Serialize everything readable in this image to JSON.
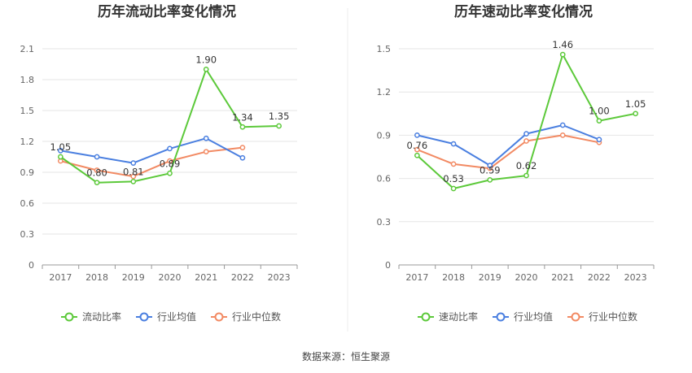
{
  "source_text": "数据来源：恒生聚源",
  "colors": {
    "main": "#5cc93a",
    "avg": "#4a7fe0",
    "median": "#f28a63",
    "grid": "#e6e6e6",
    "axis": "#999999"
  },
  "chart_data": [
    {
      "type": "line",
      "title": "历年流动比率变化情况",
      "xlabel": "",
      "ylabel": "",
      "categories": [
        "2017",
        "2018",
        "2019",
        "2020",
        "2021",
        "2022",
        "2023"
      ],
      "ylim": [
        0,
        2.1
      ],
      "yticks": [
        "0",
        "0.3",
        "0.6",
        "0.9",
        "1.2",
        "1.5",
        "1.8",
        "2.1"
      ],
      "grid": true,
      "legend": "bottom",
      "series": [
        {
          "name": "流动比率",
          "values": [
            1.05,
            0.8,
            0.81,
            0.89,
            1.9,
            1.34,
            1.35
          ],
          "labels": [
            "1.05",
            "0.80",
            "0.81",
            "0.89",
            "1.90",
            "1.34",
            "1.35"
          ]
        },
        {
          "name": "行业均值",
          "values": [
            1.11,
            1.05,
            0.99,
            1.13,
            1.23,
            1.04,
            null
          ]
        },
        {
          "name": "行业中位数",
          "values": [
            1.01,
            0.92,
            0.86,
            1.01,
            1.1,
            1.14,
            null
          ]
        }
      ]
    },
    {
      "type": "line",
      "title": "历年速动比率变化情况",
      "xlabel": "",
      "ylabel": "",
      "categories": [
        "2017",
        "2018",
        "2019",
        "2020",
        "2021",
        "2022",
        "2023"
      ],
      "ylim": [
        0,
        1.5
      ],
      "yticks": [
        "0",
        "0.3",
        "0.6",
        "0.9",
        "1.2",
        "1.5"
      ],
      "grid": true,
      "legend": "bottom",
      "series": [
        {
          "name": "速动比率",
          "values": [
            0.76,
            0.53,
            0.59,
            0.62,
            1.46,
            1.0,
            1.05
          ],
          "labels": [
            "0.76",
            "0.53",
            "0.59",
            "0.62",
            "1.46",
            "1.00",
            "1.05"
          ]
        },
        {
          "name": "行业均值",
          "values": [
            0.9,
            0.84,
            0.69,
            0.91,
            0.97,
            0.87,
            null
          ]
        },
        {
          "name": "行业中位数",
          "values": [
            0.8,
            0.7,
            0.67,
            0.86,
            0.9,
            0.85,
            null
          ]
        }
      ]
    }
  ]
}
